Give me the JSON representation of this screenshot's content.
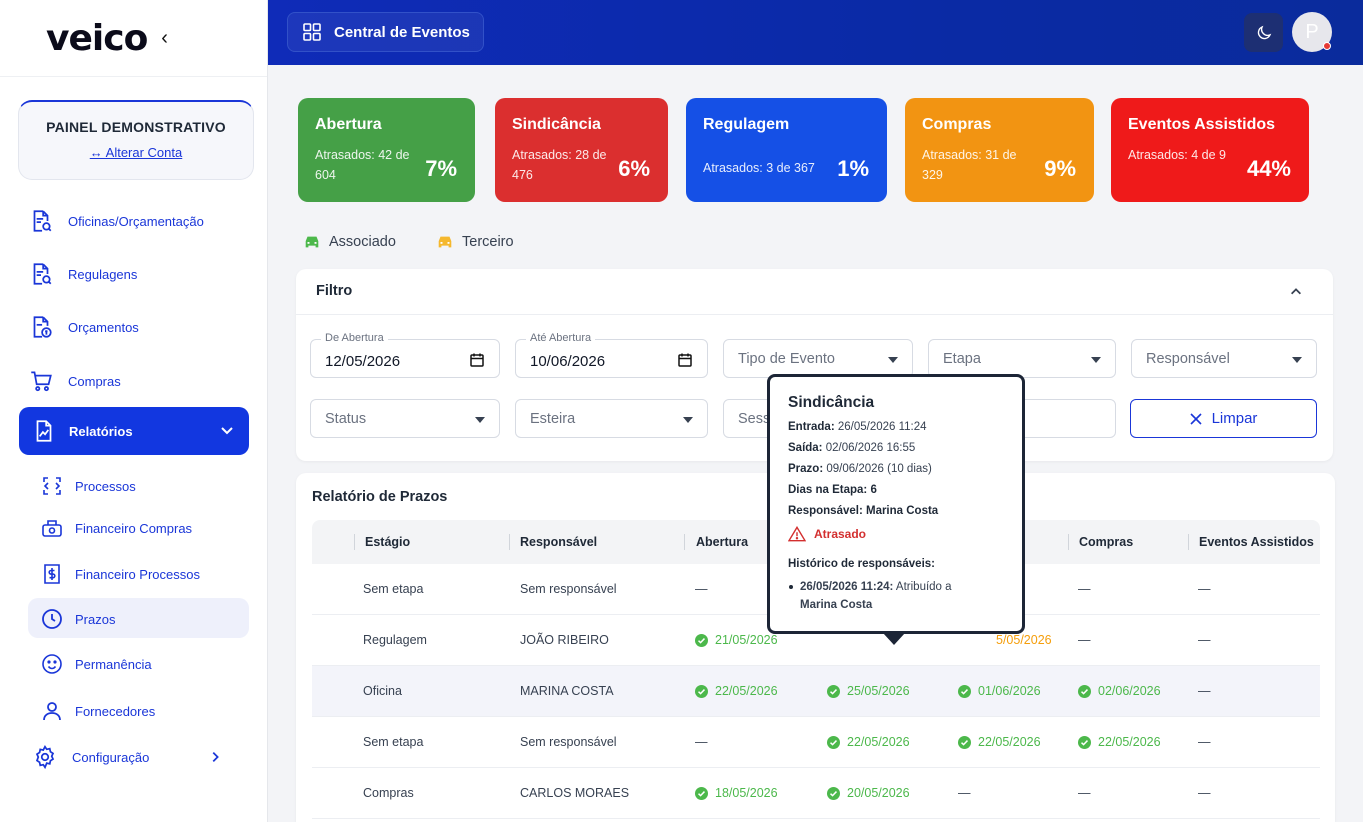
{
  "logo": "veico",
  "sidebar": {
    "panel_title": "PAINEL DEMONSTRATIVO",
    "panel_link": "↔ Alterar Conta",
    "items": [
      {
        "label": "Oficinas/Orçamentação"
      },
      {
        "label": "Regulagens"
      },
      {
        "label": "Orçamentos"
      },
      {
        "label": "Compras"
      }
    ],
    "active": {
      "label": "Relatórios"
    },
    "subitems": [
      {
        "label": "Processos"
      },
      {
        "label": "Financeiro Compras"
      },
      {
        "label": "Financeiro Processos"
      },
      {
        "label": "Prazos"
      },
      {
        "label": "Permanência"
      },
      {
        "label": "Fornecedores"
      }
    ],
    "config": {
      "label": "Configuração"
    }
  },
  "header": {
    "button_label": "Central de Eventos",
    "avatar_initial": "P"
  },
  "stats": [
    {
      "title": "Abertura",
      "desc": "Atrasados: 42 de 604",
      "pct": "7%",
      "color": "#45a047"
    },
    {
      "title": "Sindicância",
      "desc": "Atrasados: 28 de 476",
      "pct": "6%",
      "color": "#db2f2f"
    },
    {
      "title": "Regulagem",
      "desc": "Atrasados: 3 de 367",
      "pct": "1%",
      "color": "#1550e6"
    },
    {
      "title": "Compras",
      "desc": "Atrasados: 31 de 329",
      "pct": "9%",
      "color": "#f29412"
    },
    {
      "title": "Eventos Assistidos",
      "desc": "Atrasados: 4 de 9",
      "pct": "44%",
      "color": "#ef1a1a"
    }
  ],
  "legend": {
    "associado": "Associado",
    "terceiro": "Terceiro",
    "associado_color": "#4cb84b",
    "terceiro_color": "#f5b82e"
  },
  "filter": {
    "title": "Filtro",
    "de_abertura_label": "De Abertura",
    "de_abertura_value": "12/05/2026",
    "ate_abertura_label": "Até Abertura",
    "ate_abertura_value": "10/06/2026",
    "tipo_evento": "Tipo de Evento",
    "etapa": "Etapa",
    "responsavel": "Responsável",
    "status": "Status",
    "esteira": "Esteira",
    "sessao_partial": "Sess",
    "clear_label": "Limpar"
  },
  "report": {
    "title": "Relatório de Prazos",
    "columns": [
      "Estágio",
      "Responsável",
      "Abertura",
      "Compras",
      "Eventos Assistidos"
    ],
    "rows": [
      {
        "estagio": "Sem etapa",
        "responsavel": "Sem responsável",
        "abertura": "—",
        "c4": "",
        "c5": "",
        "compras": "—",
        "eventos": "—"
      },
      {
        "estagio": "Regulagem",
        "responsavel": "JOÃO RIBEIRO",
        "abertura": "21/05/2026",
        "c4": "",
        "c5": "5/05/2026",
        "compras": "—",
        "eventos": "—"
      },
      {
        "estagio": "Oficina",
        "responsavel": "MARINA COSTA",
        "abertura": "22/05/2026",
        "c4": "25/05/2026",
        "c5": "01/06/2026",
        "compras": "02/06/2026",
        "eventos": "—"
      },
      {
        "estagio": "Sem etapa",
        "responsavel": "Sem responsável",
        "abertura": "—",
        "c4": "22/05/2026",
        "c5": "22/05/2026",
        "compras": "22/05/2026",
        "eventos": "—"
      },
      {
        "estagio": "Compras",
        "responsavel": "CARLOS MORAES",
        "abertura": "18/05/2026",
        "c4": "20/05/2026",
        "c5": "—",
        "compras": "—",
        "eventos": "—"
      }
    ]
  },
  "tooltip": {
    "title": "Sindicância",
    "entrada_label": "Entrada:",
    "entrada": "26/05/2026 11:24",
    "saida_label": "Saída:",
    "saida": "02/06/2026 16:55",
    "prazo_label": "Prazo:",
    "prazo": "09/06/2026 (10 dias)",
    "dias_label": "Dias na Etapa:",
    "dias": "6",
    "resp_label": "Responsável:",
    "resp": "Marina Costa",
    "status": "Atrasado",
    "hist_title": "Histórico de responsáveis:",
    "hist_when": "26/05/2026 11:24:",
    "hist_text": "Atribuído a",
    "hist_who": "Marina Costa"
  }
}
